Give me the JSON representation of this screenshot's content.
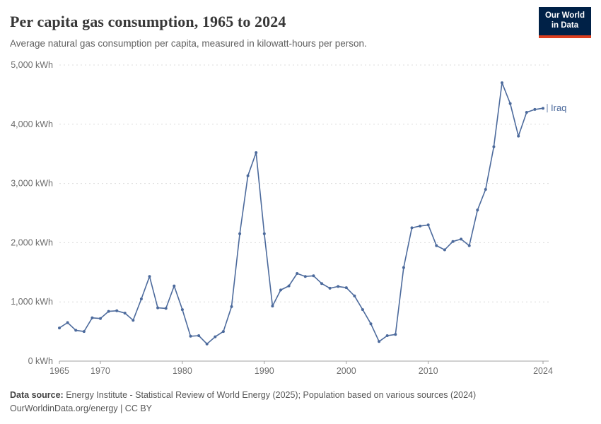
{
  "logo": {
    "line1": "Our World",
    "line2": "in Data"
  },
  "header": {
    "title": "Per capita gas consumption, 1965 to 2024",
    "subtitle": "Average natural gas consumption per capita, measured in kilowatt-hours per person."
  },
  "chart_data": {
    "type": "line",
    "title": "Per capita gas consumption, 1965 to 2024",
    "ylabel": "",
    "xlabel": "",
    "ylim": [
      0,
      5000
    ],
    "xlim": [
      1965,
      2024
    ],
    "yticks": [
      0,
      1000,
      2000,
      3000,
      4000,
      5000
    ],
    "ytick_labels": [
      "0 kWh",
      "1,000 kWh",
      "2,000 kWh",
      "3,000 kWh",
      "4,000 kWh",
      "5,000 kWh"
    ],
    "xticks": [
      1965,
      1970,
      1980,
      1990,
      2000,
      2010,
      2024
    ],
    "grid": "dashed-horizontal",
    "legend_position": "end-of-line",
    "series": [
      {
        "name": "Iraq",
        "color": "#4c6a9c",
        "x": [
          1965,
          1966,
          1967,
          1968,
          1969,
          1970,
          1971,
          1972,
          1973,
          1974,
          1975,
          1976,
          1977,
          1978,
          1979,
          1980,
          1981,
          1982,
          1983,
          1984,
          1985,
          1986,
          1987,
          1988,
          1989,
          1990,
          1991,
          1992,
          1993,
          1994,
          1995,
          1996,
          1997,
          1998,
          1999,
          2000,
          2001,
          2002,
          2003,
          2004,
          2005,
          2006,
          2007,
          2008,
          2009,
          2010,
          2011,
          2012,
          2013,
          2014,
          2015,
          2016,
          2017,
          2018,
          2019,
          2020,
          2021,
          2022,
          2023,
          2024
        ],
        "values": [
          560,
          650,
          520,
          500,
          730,
          720,
          840,
          850,
          810,
          690,
          1050,
          1430,
          900,
          890,
          1270,
          870,
          420,
          430,
          290,
          410,
          500,
          920,
          2150,
          3130,
          3520,
          2150,
          930,
          1200,
          1270,
          1480,
          1430,
          1440,
          1310,
          1230,
          1260,
          1240,
          1100,
          870,
          630,
          330,
          430,
          450,
          1580,
          2250,
          2280,
          2300,
          1950,
          1880,
          2020,
          2060,
          1950,
          2550,
          2900,
          3620,
          4700,
          4350,
          3800,
          4200,
          4250,
          4270
        ]
      }
    ]
  },
  "footer": {
    "source_label": "Data source:",
    "source_text": " Energy Institute - Statistical Review of World Energy (2025); Population based on various sources (2024)",
    "link_text": "OurWorldinData.org/energy | CC BY"
  },
  "colors": {
    "series": "#4c6a9c",
    "grid": "#dcdcdc",
    "axis": "#a1a1a1",
    "tick_text": "#6e6e6e",
    "logo_bg": "#002147",
    "logo_accent": "#dc3e1e"
  }
}
